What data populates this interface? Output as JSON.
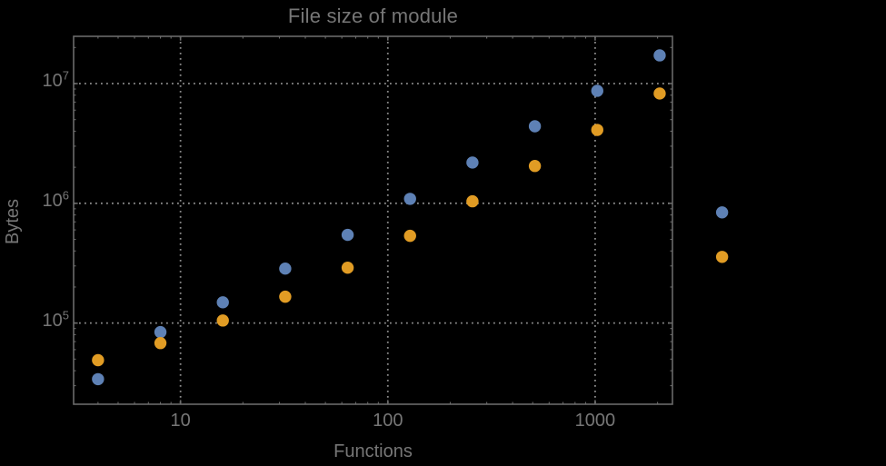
{
  "chart": {
    "title": "File size of module",
    "xlabel": "Functions",
    "ylabel": "Bytes"
  },
  "colors": {
    "background": "#000000",
    "text": "#767676",
    "frame": "#6a6a6a",
    "grid": "#8c8c8c",
    "series_blue": "#5E81B5",
    "series_orange": "#E19C24"
  },
  "chart_data": {
    "type": "scatter",
    "log_x": true,
    "log_y": true,
    "title": "File size of module",
    "xlabel": "Functions",
    "ylabel": "Bytes",
    "xlim": [
      3.05,
      2360
    ],
    "ylim": [
      21000,
      24800000
    ],
    "grid": "dotted-at-major-ticks",
    "legend": "none",
    "x_major_ticks": [
      {
        "value": 10,
        "label": "10"
      },
      {
        "value": 100,
        "label": "100"
      },
      {
        "value": 1000,
        "label": "1000"
      }
    ],
    "y_major_ticks": [
      {
        "value": 100000,
        "base": "10",
        "exp": "5"
      },
      {
        "value": 1000000,
        "base": "10",
        "exp": "6"
      },
      {
        "value": 10000000,
        "base": "10",
        "exp": "7"
      }
    ],
    "x": [
      4,
      8,
      16,
      32,
      64,
      128,
      256,
      512,
      1024,
      2048,
      4096
    ],
    "series": [
      {
        "name": "blue",
        "color": "#5E81B5",
        "values": [
          34000,
          84000,
          149000,
          285000,
          545000,
          1090000,
          2190000,
          4400000,
          8700000,
          17200000,
          840000
        ]
      },
      {
        "name": "orange",
        "color": "#E19C24",
        "values": [
          49000,
          68000,
          105000,
          166000,
          290000,
          535000,
          1040000,
          2050000,
          4100000,
          8260000,
          357000
        ]
      }
    ],
    "clip_points_to_frame": false,
    "marker": {
      "shape": "circle",
      "radius_px": 6.7
    }
  }
}
